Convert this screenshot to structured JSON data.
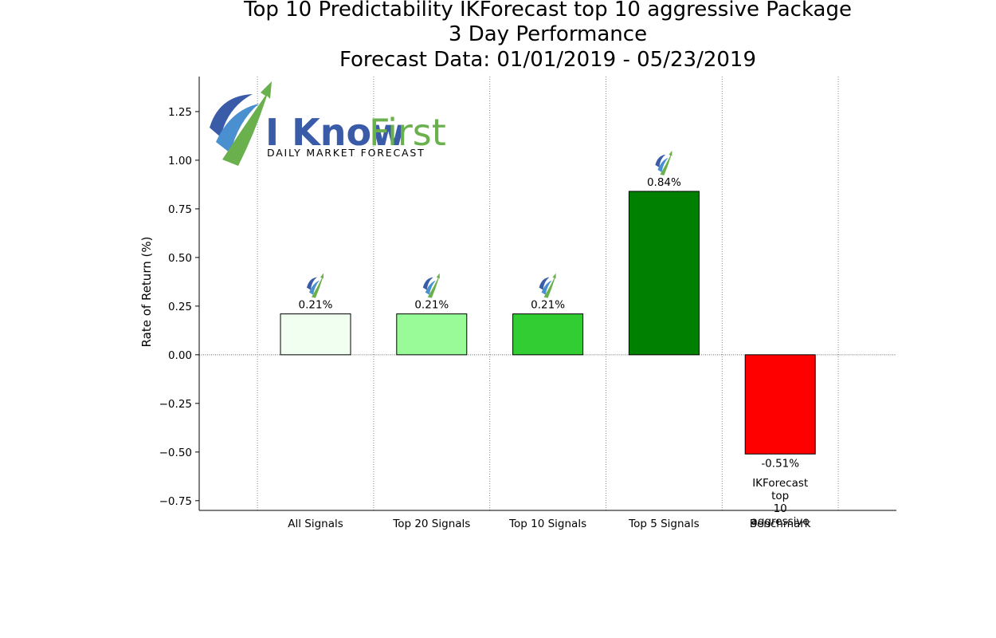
{
  "chart_data": {
    "type": "bar",
    "title": [
      "Top 10 Predictability IKForecast top 10 aggressive Package",
      "3 Day Performance",
      "Forecast Data: 01/01/2019 - 05/23/2019"
    ],
    "xlabel": "",
    "ylabel": "Rate of Return (%)",
    "ylim": [
      -0.8,
      1.43
    ],
    "yticks": [
      "1.25",
      "1.00",
      "0.75",
      "0.50",
      "0.25",
      "0.00",
      "−0.25",
      "−0.50",
      "−0.75"
    ],
    "ytick_values": [
      1.25,
      1.0,
      0.75,
      0.5,
      0.25,
      0.0,
      -0.25,
      -0.5,
      -0.75
    ],
    "categories": [
      "All Signals",
      "Top 20 Signals",
      "Top 10 Signals",
      "Top 5 Signals",
      "Benchmark"
    ],
    "values": [
      0.21,
      0.21,
      0.21,
      0.84,
      -0.51
    ],
    "value_labels": [
      "0.21%",
      "0.21%",
      "0.21%",
      "0.84%",
      "-0.51%"
    ],
    "bar_colors": [
      "#f0fff0",
      "#98fb98",
      "#32cd32",
      "#008000",
      "#ff0000"
    ],
    "grid": "vertical dotted",
    "benchmark_note": [
      "IKForecast",
      "top",
      "10",
      "aggressive"
    ]
  },
  "logo": {
    "text_brand_dark": "I Know",
    "text_brand_light": "First",
    "tagline": "Daily Market Forecast",
    "colors": {
      "blue": "#3a5ba8",
      "green": "#6ab04c"
    }
  }
}
